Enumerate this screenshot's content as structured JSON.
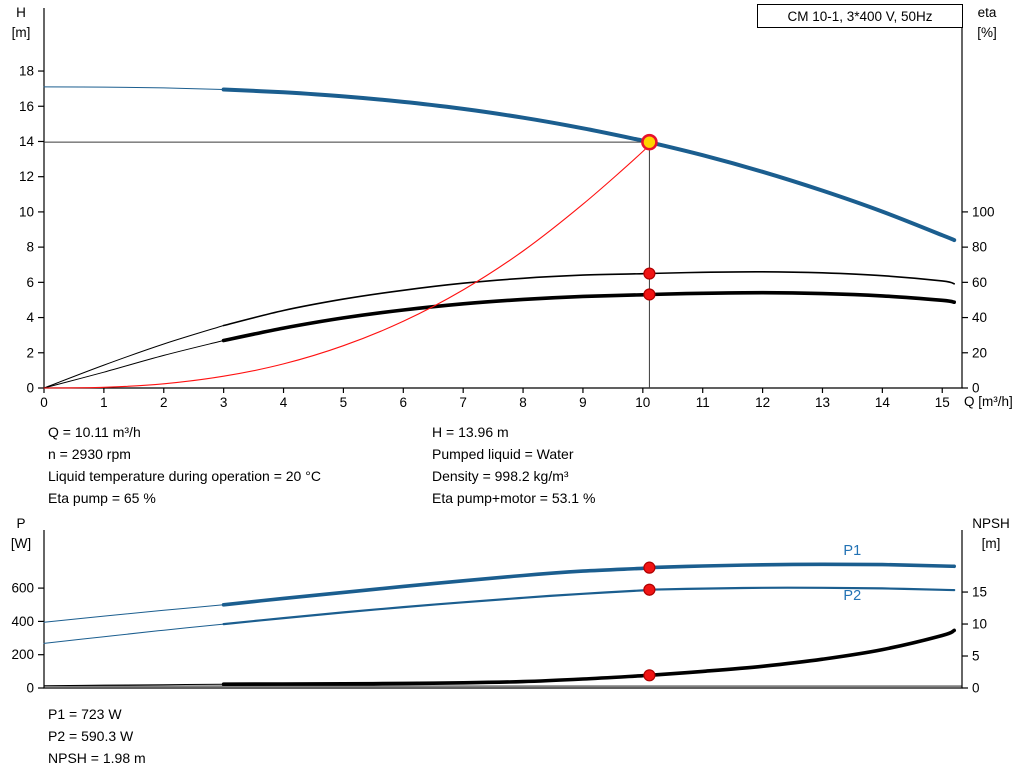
{
  "title_box": "CM 10-1, 3*400 V, 50Hz",
  "axis_corner_labels": {
    "h": [
      "H",
      "[m]"
    ],
    "eta": [
      "eta",
      "[%]"
    ],
    "q": "Q [m³/h]",
    "p": [
      "P",
      "[W]"
    ],
    "npsh": [
      "NPSH",
      "[m]"
    ]
  },
  "annotations": {
    "left": [
      "Q = 10.11 m³/h",
      "n = 2930 rpm",
      "Liquid temperature during operation = 20 °C",
      "Eta pump = 65 %"
    ],
    "right": [
      "H = 13.96 m",
      "Pumped liquid = Water",
      "Density = 998.2 kg/m³",
      "Eta pump+motor = 53.1 %"
    ],
    "bottom": [
      "P1 = 723 W",
      "P2 = 590.3 W",
      "NPSH = 1.98 m"
    ]
  },
  "colors": {
    "curve_blue": "#1b5e8f",
    "curve_black": "#000000",
    "system_red": "#ff1111",
    "marker_red": "#f01414",
    "duty_yellow": "#ffd400",
    "label_blue": "#2272b4"
  },
  "chart_data": [
    {
      "id": "top",
      "type": "line",
      "title": "CM 10-1, 3*400 V, 50Hz",
      "x_axis": {
        "label": "Q [m³/h]",
        "min": 0,
        "max": 15.33,
        "ticks": [
          0,
          1,
          2,
          3,
          4,
          5,
          6,
          7,
          8,
          9,
          10,
          11,
          12,
          13,
          14,
          15
        ]
      },
      "y_left": {
        "label": "H [m]",
        "min": 0,
        "max": 21.58,
        "ticks": [
          0,
          2,
          4,
          6,
          8,
          10,
          12,
          14,
          16,
          18
        ]
      },
      "y_right": {
        "label": "eta [%]",
        "min": 0,
        "max": 215.8,
        "ticks": [
          0,
          20,
          40,
          60,
          80,
          100
        ]
      },
      "grid": false,
      "legend": "none",
      "duty": {
        "q": 10.11,
        "value": 13.96,
        "axis": "left"
      },
      "series": [
        {
          "name": "head-curve",
          "axis": "left",
          "color": "#1b5e8f",
          "width": 4,
          "thin_width": 1,
          "split_q": 3,
          "points": [
            [
              0,
              17.1
            ],
            [
              1,
              17.09
            ],
            [
              2,
              17.04
            ],
            [
              3,
              16.95
            ],
            [
              4,
              16.79
            ],
            [
              5,
              16.56
            ],
            [
              6,
              16.25
            ],
            [
              7,
              15.85
            ],
            [
              8,
              15.35
            ],
            [
              9,
              14.75
            ],
            [
              10,
              14.05
            ],
            [
              10.11,
              13.96
            ],
            [
              11,
              13.22
            ],
            [
              12,
              12.28
            ],
            [
              13,
              11.21
            ],
            [
              14,
              10.02
            ],
            [
              15,
              8.68
            ],
            [
              15.2,
              8.4
            ]
          ]
        },
        {
          "name": "eta-pump-curve",
          "axis": "right",
          "color": "#000000",
          "width": 1.6,
          "thin_width": 1,
          "split_q": 3,
          "points": [
            [
              0,
              0
            ],
            [
              1,
              13
            ],
            [
              2,
              25
            ],
            [
              3,
              35.5
            ],
            [
              4,
              44
            ],
            [
              5,
              50.5
            ],
            [
              6,
              55.5
            ],
            [
              7,
              59.5
            ],
            [
              8,
              62.3
            ],
            [
              9,
              64.1
            ],
            [
              10,
              64.9
            ],
            [
              10.11,
              65
            ],
            [
              11,
              65.7
            ],
            [
              12,
              66
            ],
            [
              13,
              65.4
            ],
            [
              14,
              63.8
            ],
            [
              15,
              60.8
            ],
            [
              15.2,
              59.2
            ]
          ]
        },
        {
          "name": "eta-pump-motor-curve",
          "axis": "right",
          "color": "#000000",
          "width": 3.6,
          "thin_width": 1,
          "split_q": 3,
          "points": [
            [
              0,
              0
            ],
            [
              1,
              9
            ],
            [
              2,
              18.5
            ],
            [
              3,
              27
            ],
            [
              4,
              34
            ],
            [
              5,
              39.8
            ],
            [
              6,
              44.3
            ],
            [
              7,
              47.8
            ],
            [
              8,
              50.3
            ],
            [
              9,
              52
            ],
            [
              10,
              52.9
            ],
            [
              10.11,
              53.1
            ],
            [
              11,
              53.8
            ],
            [
              12,
              54.1
            ],
            [
              13,
              53.6
            ],
            [
              14,
              52.3
            ],
            [
              15,
              49.8
            ],
            [
              15.2,
              48.7
            ]
          ]
        },
        {
          "name": "system-curve",
          "axis": "left",
          "color": "#ff1111",
          "width": 1.1,
          "points": [
            [
              0,
              0
            ],
            [
              1,
              0.04
            ],
            [
              2,
              0.24
            ],
            [
              3,
              0.67
            ],
            [
              4,
              1.37
            ],
            [
              5,
              2.4
            ],
            [
              6,
              3.79
            ],
            [
              7,
              5.57
            ],
            [
              8,
              7.78
            ],
            [
              9,
              10.44
            ],
            [
              10,
              13.43
            ],
            [
              10.11,
              13.96
            ]
          ]
        }
      ],
      "markers": [
        {
          "name": "duty-point",
          "q": 10.11,
          "v": 13.96,
          "axis": "left",
          "r": 7,
          "fill": "#ffd400",
          "stroke": "#e8112d",
          "stroke_width": 2.6,
          "interactable": true
        },
        {
          "name": "eta-pump-point",
          "q": 10.11,
          "v": 65,
          "axis": "right",
          "r": 5.5,
          "fill": "#f01414",
          "stroke": "#b00000",
          "stroke_width": 1.2
        },
        {
          "name": "eta-pump-motor-point",
          "q": 10.11,
          "v": 53.1,
          "axis": "right",
          "r": 5.5,
          "fill": "#f01414",
          "stroke": "#b00000",
          "stroke_width": 1.2
        }
      ]
    },
    {
      "id": "bottom",
      "type": "line",
      "x_axis": {
        "min": 0,
        "max": 15.33
      },
      "y_left": {
        "label": "P [W]",
        "min": 0,
        "max": 949,
        "ticks": [
          0,
          200,
          400,
          600
        ]
      },
      "y_right": {
        "label": "NPSH [m]",
        "min": 0,
        "max": 24.7,
        "ticks": [
          0,
          5,
          10,
          15
        ]
      },
      "grid": false,
      "legend": "inline",
      "series": [
        {
          "name": "p1-curve",
          "axis": "left",
          "color": "#1b5e8f",
          "width": 3.6,
          "thin_width": 1,
          "split_q": 3,
          "points": [
            [
              0,
              395
            ],
            [
              1,
              432
            ],
            [
              2,
              467
            ],
            [
              3,
              500
            ],
            [
              4,
              538
            ],
            [
              5,
              574
            ],
            [
              6,
              610
            ],
            [
              7,
              644
            ],
            [
              8,
              676
            ],
            [
              9,
              702
            ],
            [
              10,
              719
            ],
            [
              10.11,
              723
            ],
            [
              11,
              733
            ],
            [
              12,
              740
            ],
            [
              13,
              743
            ],
            [
              14,
              741
            ],
            [
              15,
              733
            ],
            [
              15.2,
              731
            ]
          ]
        },
        {
          "name": "p2-curve",
          "axis": "left",
          "color": "#1b5e8f",
          "width": 2.2,
          "thin_width": 1,
          "split_q": 3,
          "points": [
            [
              0,
              268
            ],
            [
              1,
              308
            ],
            [
              2,
              347
            ],
            [
              3,
              384
            ],
            [
              4,
              420
            ],
            [
              5,
              454
            ],
            [
              6,
              486
            ],
            [
              7,
              515
            ],
            [
              8,
              542
            ],
            [
              9,
              566
            ],
            [
              10,
              586
            ],
            [
              10.11,
              590.3
            ],
            [
              11,
              597
            ],
            [
              12,
              602
            ],
            [
              13,
              602
            ],
            [
              14,
              598
            ],
            [
              15,
              590
            ],
            [
              15.2,
              588
            ]
          ]
        },
        {
          "name": "npsh-curve",
          "axis": "right",
          "color": "#000000",
          "width": 3.6,
          "thin_width": 1,
          "split_q": 3,
          "points": [
            [
              0,
              0.35
            ],
            [
              1,
              0.45
            ],
            [
              2,
              0.52
            ],
            [
              3,
              0.6
            ],
            [
              4,
              0.63
            ],
            [
              5,
              0.66
            ],
            [
              6,
              0.72
            ],
            [
              7,
              0.82
            ],
            [
              8,
              1.0
            ],
            [
              9,
              1.4
            ],
            [
              10,
              1.92
            ],
            [
              10.11,
              1.98
            ],
            [
              11,
              2.6
            ],
            [
              12,
              3.4
            ],
            [
              13,
              4.5
            ],
            [
              14,
              6.0
            ],
            [
              15,
              8.2
            ],
            [
              15.2,
              9.0
            ]
          ]
        },
        {
          "name": "npsh-ref-line",
          "axis": "right",
          "color": "#000000",
          "width": 0.9,
          "points": [
            [
              0,
              0.3
            ],
            [
              15.33,
              0.3
            ]
          ]
        }
      ],
      "markers": [
        {
          "name": "p1-point",
          "q": 10.11,
          "v": 723,
          "axis": "left",
          "r": 5.5,
          "fill": "#f01414",
          "stroke": "#b00000",
          "stroke_width": 1.2
        },
        {
          "name": "p2-point",
          "q": 10.11,
          "v": 590.3,
          "axis": "left",
          "r": 5.5,
          "fill": "#f01414",
          "stroke": "#b00000",
          "stroke_width": 1.2
        },
        {
          "name": "npsh-point",
          "q": 10.11,
          "v": 1.98,
          "axis": "right",
          "r": 5.5,
          "fill": "#f01414",
          "stroke": "#b00000",
          "stroke_width": 1.2
        }
      ],
      "labels": [
        {
          "text": "P1",
          "q": 13.35,
          "v": 800,
          "axis": "left",
          "color": "#2272b4"
        },
        {
          "text": "P2",
          "q": 13.35,
          "v": 530,
          "axis": "left",
          "color": "#2272b4"
        }
      ]
    }
  ]
}
